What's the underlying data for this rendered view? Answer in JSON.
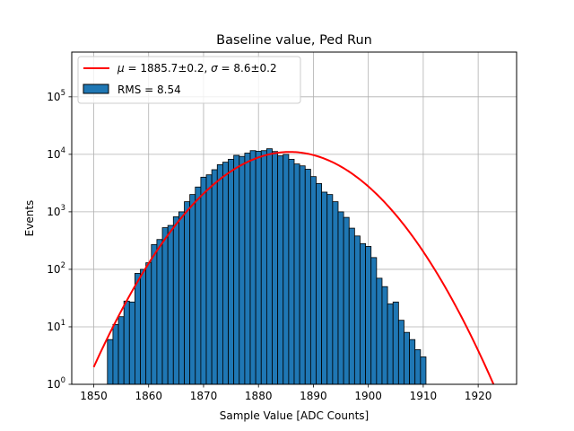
{
  "chart_data": {
    "type": "bar",
    "title": "Baseline value, Ped Run",
    "xlabel": "Sample Value [ADC Counts]",
    "ylabel": "Events",
    "xlim": [
      1846,
      1927
    ],
    "ylim": [
      1,
      600000
    ],
    "yscale": "log",
    "grid": true,
    "x_ticks": [
      1850,
      1860,
      1870,
      1880,
      1890,
      1900,
      1910,
      1920
    ],
    "y_ticks": [
      {
        "value": 1,
        "base": "10",
        "exp": "0"
      },
      {
        "value": 10,
        "base": "10",
        "exp": "1"
      },
      {
        "value": 100,
        "base": "10",
        "exp": "2"
      },
      {
        "value": 1000,
        "base": "10",
        "exp": "3"
      },
      {
        "value": 10000,
        "base": "10",
        "exp": "4"
      },
      {
        "value": 100000,
        "base": "10",
        "exp": "5"
      }
    ],
    "bin_start": 1852.5,
    "bin_width": 1.0,
    "histogram": {
      "name": "RMS = 8.54",
      "color": "#1f77b4",
      "edgecolor": "#000000",
      "counts": [
        6,
        11,
        15,
        28,
        27,
        85,
        100,
        130,
        270,
        330,
        530,
        580,
        820,
        1000,
        1500,
        2000,
        2700,
        4000,
        4400,
        5400,
        6600,
        7300,
        8200,
        9600,
        9200,
        10500,
        11600,
        11300,
        11600,
        12500,
        11200,
        9400,
        10000,
        8200,
        6800,
        6300,
        5500,
        4100,
        3100,
        2200,
        2000,
        1500,
        1000,
        800,
        520,
        380,
        280,
        250,
        160,
        70,
        50,
        25,
        27,
        13,
        8,
        6,
        4,
        3
      ]
    },
    "fit": {
      "name": "μ = 1885.7±0.2, σ = 8.6±0.2",
      "label_mu": "μ",
      "label_text_1": " = 1885.7±0.2, ",
      "label_sigma": "σ",
      "label_text_2": " = 8.6±0.2",
      "color": "#ff0000",
      "mu": 1885.7,
      "sigma": 8.6,
      "amplitude": 11000,
      "x_range": [
        1850,
        1925
      ]
    },
    "legend": {
      "position": "upper-left",
      "entries": [
        {
          "kind": "line",
          "label": "μ = 1885.7±0.2, σ = 8.6±0.2"
        },
        {
          "kind": "patch",
          "label": "RMS = 8.54"
        }
      ]
    }
  }
}
